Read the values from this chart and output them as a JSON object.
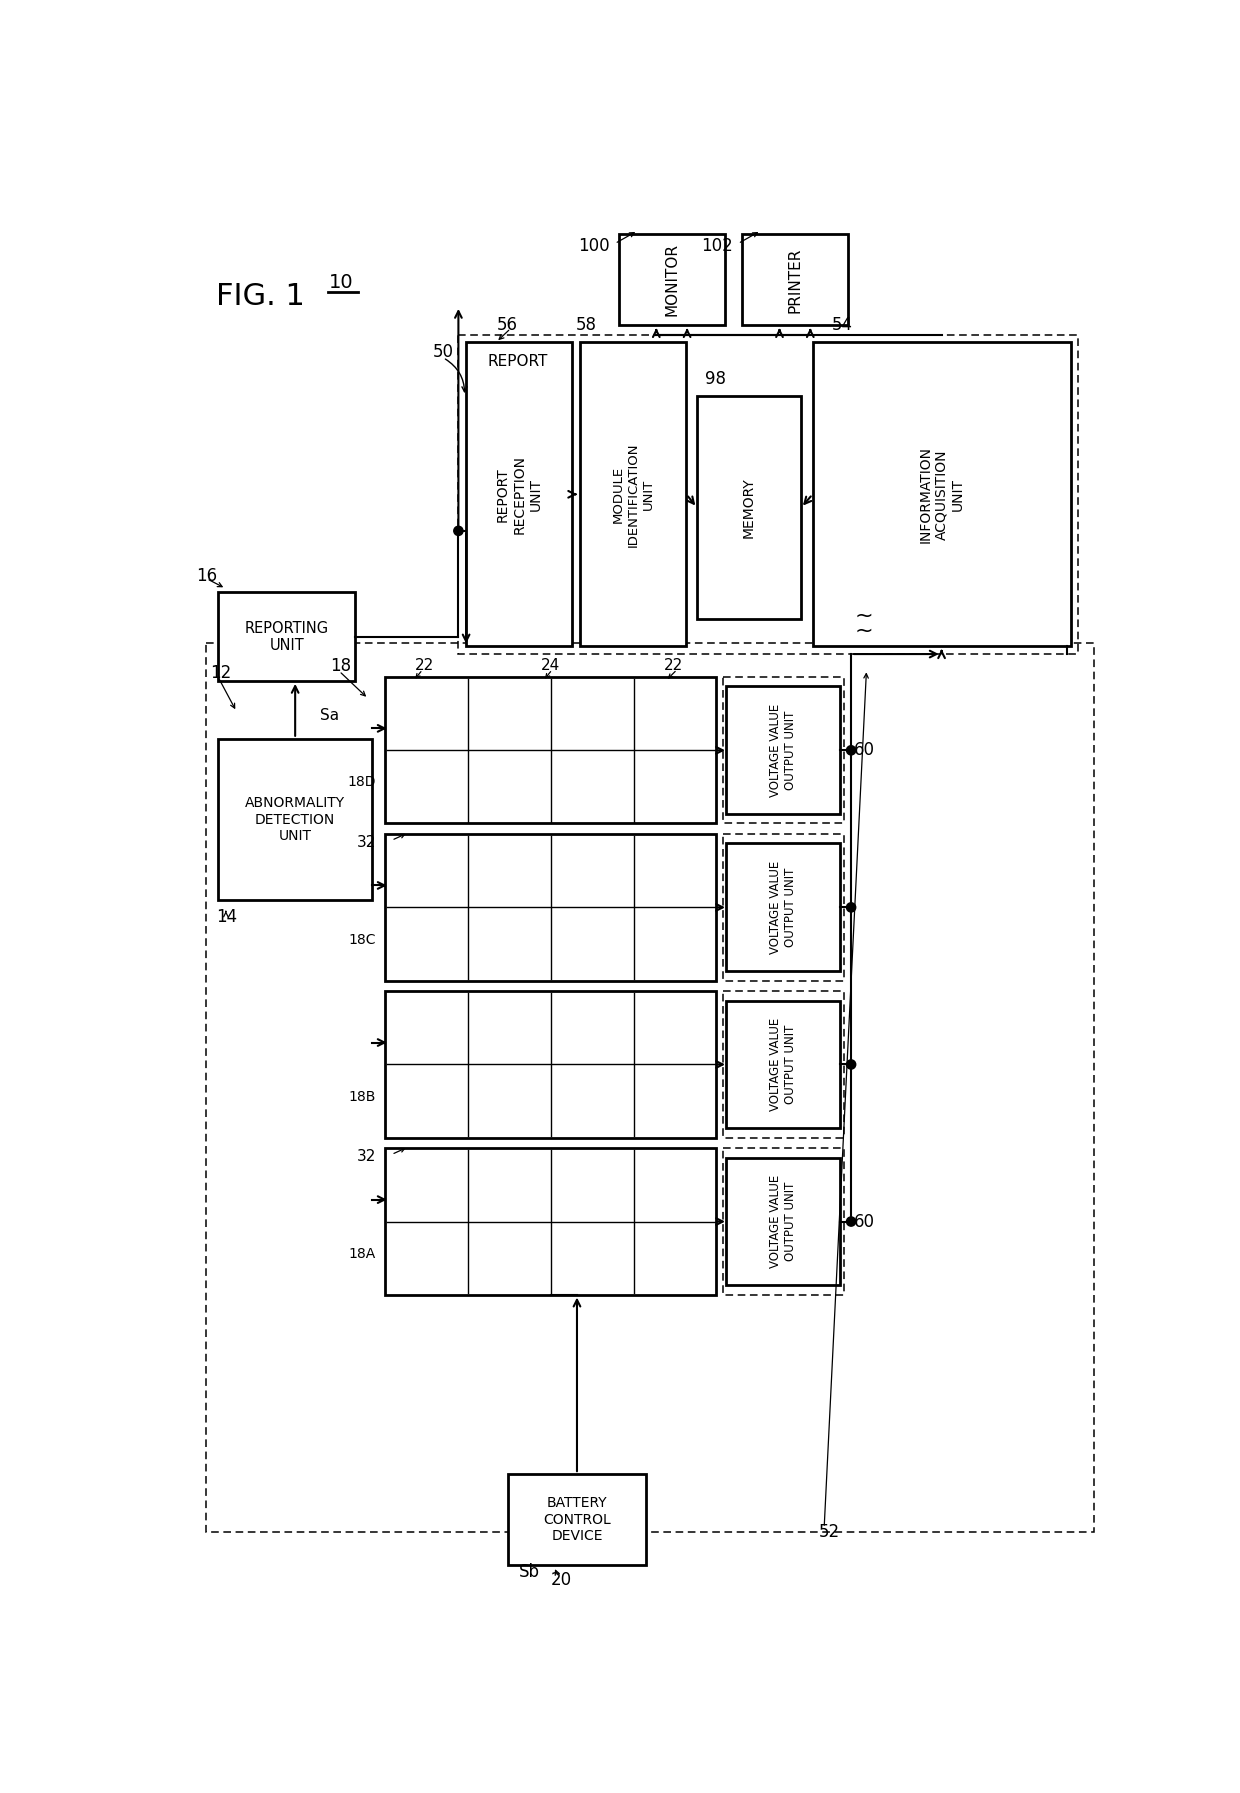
{
  "bg": "#ffffff",
  "lc": "#000000",
  "fig_label": "FIG. 1",
  "n10": "10",
  "n12": "12",
  "n14": "14",
  "n16": "16",
  "n18": "18",
  "n18A": "18A",
  "n18B": "18B",
  "n18C": "18C",
  "n18D": "18D",
  "n20": "20",
  "n22": "22",
  "n24": "24",
  "n32": "32",
  "n50": "50",
  "n52": "52",
  "n54": "54",
  "n56": "56",
  "n58": "58",
  "n60": "60",
  "n98": "98",
  "n100": "100",
  "n102": "102",
  "Sa": "Sa",
  "Sb": "Sb",
  "t_report": "REPORT",
  "t_reporting": "REPORTING\nUNIT",
  "t_abnorm": "ABNORMALITY\nDETECTION\nUNIT",
  "t_rr": "REPORT\nRECEPTION\nUNIT",
  "t_modid": "MODULE\nIDENTIFICATION\nUNIT",
  "t_mem": "MEMORY",
  "t_iau": "INFORMATION\nACQUISITION\nUNIT",
  "t_mon": "MONITOR",
  "t_prt": "PRINTER",
  "t_vou": "VOLTAGE VALUE\nOUTPUT UNIT",
  "t_bcd": "BATTERY\nCONTROL\nDEVICE"
}
